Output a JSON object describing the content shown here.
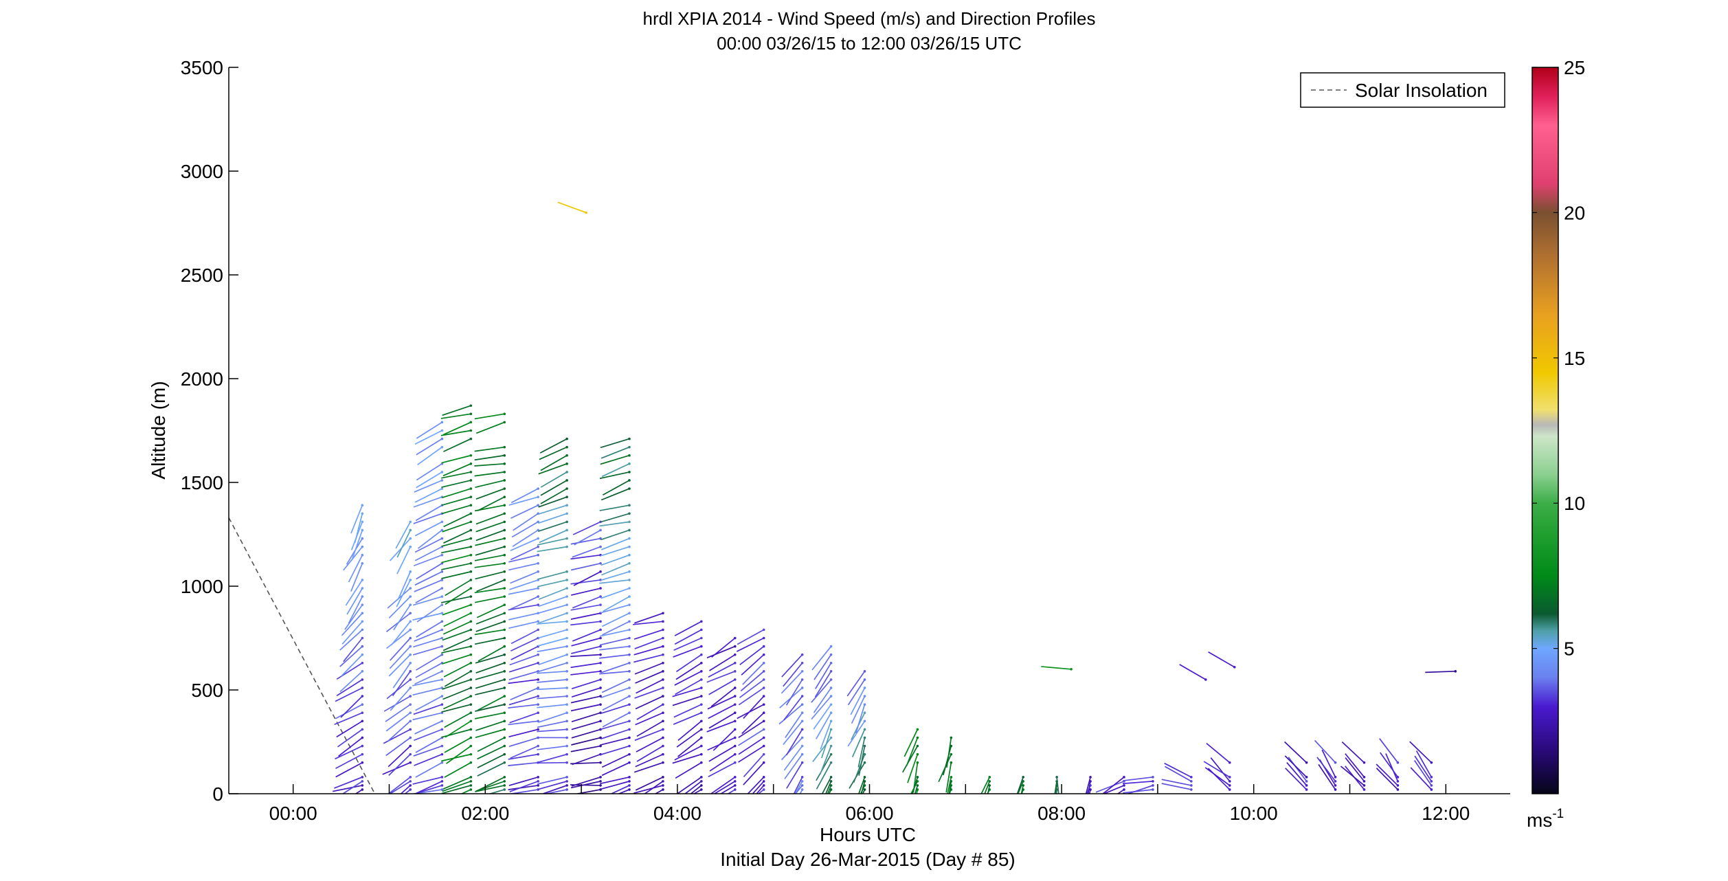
{
  "chart_data": {
    "type": "wind-barb-profile",
    "title": "hrdl XPIA 2014 - Wind Speed (m/s) and Direction Profiles",
    "subtitle": "00:00 03/26/15 to 12:00 03/26/15  UTC",
    "xlabel": "Hours UTC",
    "xlabel2": "Initial Day 26-Mar-2015 (Day # 85)",
    "ylabel": "Altitude (m)",
    "xlim": [
      -0.67,
      12.67
    ],
    "ylim": [
      0,
      3500
    ],
    "x_ticks": [
      {
        "value": 0,
        "label": "00:00"
      },
      {
        "value": 1,
        "label": ""
      },
      {
        "value": 2,
        "label": "02:00"
      },
      {
        "value": 3,
        "label": ""
      },
      {
        "value": 4,
        "label": "04:00"
      },
      {
        "value": 5,
        "label": ""
      },
      {
        "value": 6,
        "label": "06:00"
      },
      {
        "value": 7,
        "label": ""
      },
      {
        "value": 8,
        "label": "08:00"
      },
      {
        "value": 9,
        "label": ""
      },
      {
        "value": 10,
        "label": "10:00"
      },
      {
        "value": 11,
        "label": ""
      },
      {
        "value": 12,
        "label": "12:00"
      }
    ],
    "y_ticks": [
      {
        "value": 0,
        "label": "0"
      },
      {
        "value": 500,
        "label": "500"
      },
      {
        "value": 1000,
        "label": "1000"
      },
      {
        "value": 1500,
        "label": "1500"
      },
      {
        "value": 2000,
        "label": "2000"
      },
      {
        "value": 2500,
        "label": "2500"
      },
      {
        "value": 3000,
        "label": "3000"
      },
      {
        "value": 3500,
        "label": "3500"
      }
    ],
    "legend": {
      "label": "Solar Insolation",
      "position": "top-right",
      "color": "#555555"
    },
    "solar_insolation": {
      "x": [
        -0.67,
        0.85
      ],
      "y": [
        1330,
        0
      ]
    },
    "colorbar": {
      "range": [
        0,
        25
      ],
      "ticks": [
        {
          "value": 5,
          "label": "5"
        },
        {
          "value": 10,
          "label": "10"
        },
        {
          "value": 15,
          "label": "15"
        },
        {
          "value": 20,
          "label": "20"
        },
        {
          "value": 25,
          "label": "25"
        }
      ],
      "unit_base": "ms",
      "unit_exp": "-1",
      "stops": [
        [
          0,
          "#050518"
        ],
        [
          1.5,
          "#2a0a7a"
        ],
        [
          3,
          "#4a1ad0"
        ],
        [
          4,
          "#6a80ee"
        ],
        [
          5,
          "#6fa8ff"
        ],
        [
          5.6,
          "#4fa0a8"
        ],
        [
          6.2,
          "#0a5a30"
        ],
        [
          7.5,
          "#008a18"
        ],
        [
          9,
          "#22a030"
        ],
        [
          10,
          "#3cae48"
        ],
        [
          11,
          "#8cd090"
        ],
        [
          12.3,
          "#cde6c8"
        ],
        [
          12.7,
          "#b8b8b8"
        ],
        [
          13.2,
          "#f0e070"
        ],
        [
          14.5,
          "#f0c800"
        ],
        [
          16.5,
          "#e8a020"
        ],
        [
          18.5,
          "#b07030"
        ],
        [
          20,
          "#7a5030"
        ],
        [
          21,
          "#e04070"
        ],
        [
          23,
          "#ff6090"
        ],
        [
          24,
          "#e0205a"
        ],
        [
          25,
          "#b00018"
        ]
      ]
    },
    "profiles": [
      {
        "time": 0.72,
        "top": 1390,
        "bottom_gap": 1050,
        "dir_low": 250,
        "dir_high": 200,
        "spd_low": 3,
        "spd_high": 5
      },
      {
        "time": 1.22,
        "top": 1320,
        "bottom_gap": 1100,
        "dir_low": 240,
        "dir_high": 210,
        "spd_low": 3,
        "spd_high": 5
      },
      {
        "time": 1.55,
        "top": 1800,
        "bottom_gap": 1600,
        "dir_low": 250,
        "dir_high": 240,
        "spd_low": 3.5,
        "spd_high": 4.5
      },
      {
        "time": 1.85,
        "top": 1870,
        "bottom_gap": 1650,
        "dir_low": 245,
        "dir_high": 250,
        "spd_low": 7,
        "spd_high": 7
      },
      {
        "time": 2.2,
        "top": 1860,
        "bottom_gap": 1700,
        "dir_low": 250,
        "dir_high": 255,
        "spd_low": 6.5,
        "spd_high": 7
      },
      {
        "time": 2.55,
        "top": 1500,
        "dir_low": 255,
        "dir_high": 245,
        "spd_low": 3,
        "spd_high": 4.5
      },
      {
        "time": 2.85,
        "top": 1720,
        "bottom_gap": 1100,
        "dir_low": 260,
        "dir_high": 250,
        "spd_low": 3,
        "spd_high": 6.5
      },
      {
        "time": 3.2,
        "top": 1330,
        "dir_low": 260,
        "dir_high": 250,
        "spd_low": 2,
        "spd_high": 3.5
      },
      {
        "time": 3.5,
        "top": 1730,
        "bottom_gap": 1400,
        "dir_low": 255,
        "dir_high": 250,
        "spd_low": 2.5,
        "spd_high": 6.5
      },
      {
        "time": 3.85,
        "top": 900,
        "dir_low": 245,
        "dir_high": 255,
        "spd_low": 2.5,
        "spd_high": 3
      },
      {
        "time": 4.25,
        "top": 840,
        "dir_low": 240,
        "dir_high": 245,
        "spd_low": 2.5,
        "spd_high": 3
      },
      {
        "time": 4.6,
        "top": 780,
        "dir_low": 235,
        "dir_high": 240,
        "spd_low": 3,
        "spd_high": 3
      },
      {
        "time": 4.9,
        "top": 800,
        "dir_low": 220,
        "dir_high": 240,
        "spd_low": 3,
        "spd_high": 3.5
      },
      {
        "time": 5.3,
        "top": 680,
        "dir_low": 215,
        "dir_high": 220,
        "spd_low": 4,
        "spd_high": 3.5
      },
      {
        "time": 5.6,
        "top": 740,
        "dir_low": 205,
        "dir_high": 215,
        "spd_low": 6.5,
        "spd_high": 3.5
      },
      {
        "time": 5.95,
        "top": 620,
        "dir_low": 200,
        "dir_high": 205,
        "spd_low": 6.5,
        "spd_high": 4
      },
      {
        "time": 6.5,
        "top": 320,
        "dir_low": 195,
        "dir_high": 200,
        "spd_low": 7,
        "spd_high": 7
      },
      {
        "time": 6.85,
        "top": 270,
        "dir_low": 200,
        "dir_high": 200,
        "spd_low": 7,
        "spd_high": 7
      },
      {
        "time": 7.25,
        "top": 100,
        "dir_low": 200,
        "dir_high": 200,
        "spd_low": 7,
        "spd_high": 7
      },
      {
        "time": 7.6,
        "top": 100,
        "dir_low": 200,
        "dir_high": 200,
        "spd_low": 6.5,
        "spd_high": 6.5
      },
      {
        "time": 7.95,
        "top": 100,
        "dir_low": 185,
        "dir_high": 185,
        "spd_low": 6.5,
        "spd_high": 6.5
      },
      {
        "time": 8.3,
        "top": 100,
        "dir_low": 200,
        "dir_high": 200,
        "spd_low": 3,
        "spd_high": 3
      },
      {
        "time": 8.65,
        "top": 90,
        "dir_low": 240,
        "dir_high": 240,
        "spd_low": 3,
        "spd_high": 3
      },
      {
        "time": 8.95,
        "top": 90,
        "dir_low": 255,
        "dir_high": 255,
        "spd_low": 3,
        "spd_high": 3
      },
      {
        "time": 9.35,
        "top": 130,
        "dir_low": 290,
        "dir_high": 290,
        "spd_low": 3,
        "spd_high": 4
      },
      {
        "time": 9.75,
        "top": 150,
        "dir_low": 310,
        "dir_high": 310,
        "spd_low": 3,
        "spd_high": 3
      },
      {
        "time": 10.55,
        "top": 180,
        "dir_low": 325,
        "dir_high": 320,
        "spd_low": 3,
        "spd_high": 3
      },
      {
        "time": 10.85,
        "top": 180,
        "dir_low": 330,
        "dir_high": 325,
        "spd_low": 3,
        "spd_high": 3
      },
      {
        "time": 11.15,
        "top": 160,
        "dir_low": 320,
        "dir_high": 320,
        "spd_low": 3,
        "spd_high": 3
      },
      {
        "time": 11.5,
        "top": 160,
        "dir_low": 325,
        "dir_high": 325,
        "spd_low": 3,
        "spd_high": 3
      },
      {
        "time": 11.85,
        "top": 160,
        "dir_low": 325,
        "dir_high": 325,
        "spd_low": 3,
        "spd_high": 3
      }
    ],
    "isolated_barbs": [
      {
        "time": 3.05,
        "alt": 2800,
        "dir": 290,
        "spd": 14.5
      },
      {
        "time": 8.1,
        "alt": 600,
        "dir": 275,
        "spd": 8
      },
      {
        "time": 9.5,
        "alt": 550,
        "dir": 300,
        "spd": 3
      },
      {
        "time": 9.8,
        "alt": 610,
        "dir": 300,
        "spd": 3
      },
      {
        "time": 12.1,
        "alt": 590,
        "dir": 268,
        "spd": 2
      }
    ]
  }
}
